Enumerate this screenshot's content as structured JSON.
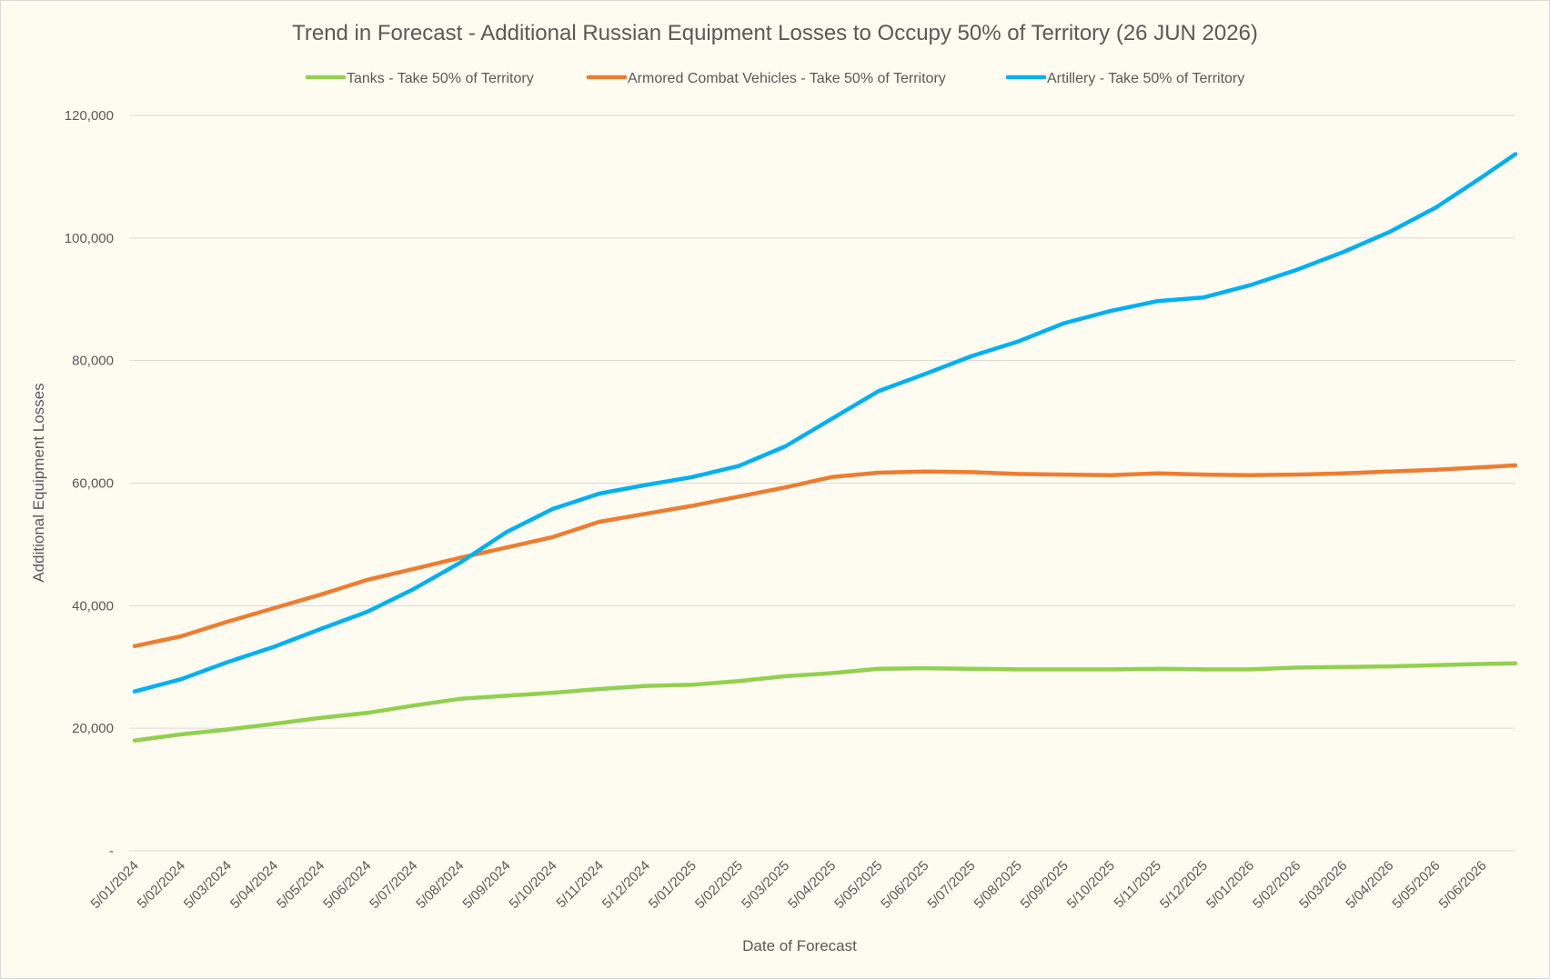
{
  "chart_data": {
    "type": "line",
    "title": "Trend in Forecast - Additional Russian Equipment Losses to Occupy 50% of Territory (26 JUN 2026)",
    "xlabel": "Date of Forecast",
    "ylabel": "Additional Equipment Losses",
    "ylim": [
      0,
      120000
    ],
    "yticks": [
      {
        "value": 0,
        "label": "-"
      },
      {
        "value": 20000,
        "label": "20,000"
      },
      {
        "value": 40000,
        "label": "40,000"
      },
      {
        "value": 60000,
        "label": "60,000"
      },
      {
        "value": 80000,
        "label": "80,000"
      },
      {
        "value": 100000,
        "label": "100,000"
      },
      {
        "value": 120000,
        "label": "120,000"
      }
    ],
    "xticks": [
      "5/01/2024",
      "5/02/2024",
      "5/03/2024",
      "5/04/2024",
      "5/05/2024",
      "5/06/2024",
      "5/07/2024",
      "5/08/2024",
      "5/09/2024",
      "5/10/2024",
      "5/11/2024",
      "5/12/2024",
      "5/01/2025",
      "5/02/2025",
      "5/03/2025",
      "5/04/2025",
      "5/05/2025",
      "5/06/2025",
      "5/07/2025",
      "5/08/2025",
      "5/09/2025",
      "5/10/2025",
      "5/11/2025",
      "5/12/2025",
      "5/01/2026",
      "5/02/2026",
      "5/03/2026",
      "5/04/2026",
      "5/05/2026",
      "5/06/2026"
    ],
    "x": [
      "5/01/2024",
      "5/02/2024",
      "5/03/2024",
      "5/04/2024",
      "5/05/2024",
      "5/06/2024",
      "5/07/2024",
      "5/08/2024",
      "5/09/2024",
      "5/10/2024",
      "5/11/2024",
      "5/12/2024",
      "5/01/2025",
      "5/02/2025",
      "5/03/2025",
      "5/04/2025",
      "5/05/2025",
      "5/06/2025",
      "5/07/2025",
      "5/08/2025",
      "5/09/2025",
      "5/10/2025",
      "5/11/2025",
      "5/12/2025",
      "5/01/2026",
      "5/02/2026",
      "5/03/2026",
      "5/04/2026",
      "5/05/2026",
      "5/06/2026",
      "26/06/2026"
    ],
    "legend_position": "top",
    "grid": true,
    "series": [
      {
        "name": "Tanks - Take 50% of Territory",
        "color": "#92d050",
        "values": [
          18000,
          19000,
          19800,
          20700,
          21700,
          22500,
          23700,
          24800,
          25300,
          25800,
          26400,
          26900,
          27100,
          27700,
          28500,
          29000,
          29700,
          29800,
          29700,
          29600,
          29600,
          29600,
          29700,
          29600,
          29600,
          29900,
          30000,
          30100,
          30300,
          30500,
          30600
        ]
      },
      {
        "name": "Armored Combat Vehicles - Take 50% of Territory",
        "color": "#ed7d31",
        "values": [
          33400,
          35000,
          37400,
          39600,
          41800,
          44200,
          46000,
          47800,
          49500,
          51200,
          53700,
          55000,
          56300,
          57800,
          59300,
          61000,
          61700,
          61900,
          61800,
          61500,
          61400,
          61300,
          61600,
          61400,
          61300,
          61400,
          61600,
          61900,
          62200,
          62600,
          62900
        ]
      },
      {
        "name": "Artillery - Take 50% of Territory",
        "color": "#00b0f0",
        "values": [
          26000,
          28000,
          30800,
          33300,
          36200,
          39000,
          42700,
          47000,
          52000,
          55800,
          58300,
          59700,
          61000,
          62800,
          66000,
          70500,
          75000,
          77800,
          80700,
          83100,
          86100,
          88100,
          89700,
          90300,
          92300,
          94800,
          97700,
          101000,
          105000,
          110000,
          113700
        ]
      }
    ]
  }
}
